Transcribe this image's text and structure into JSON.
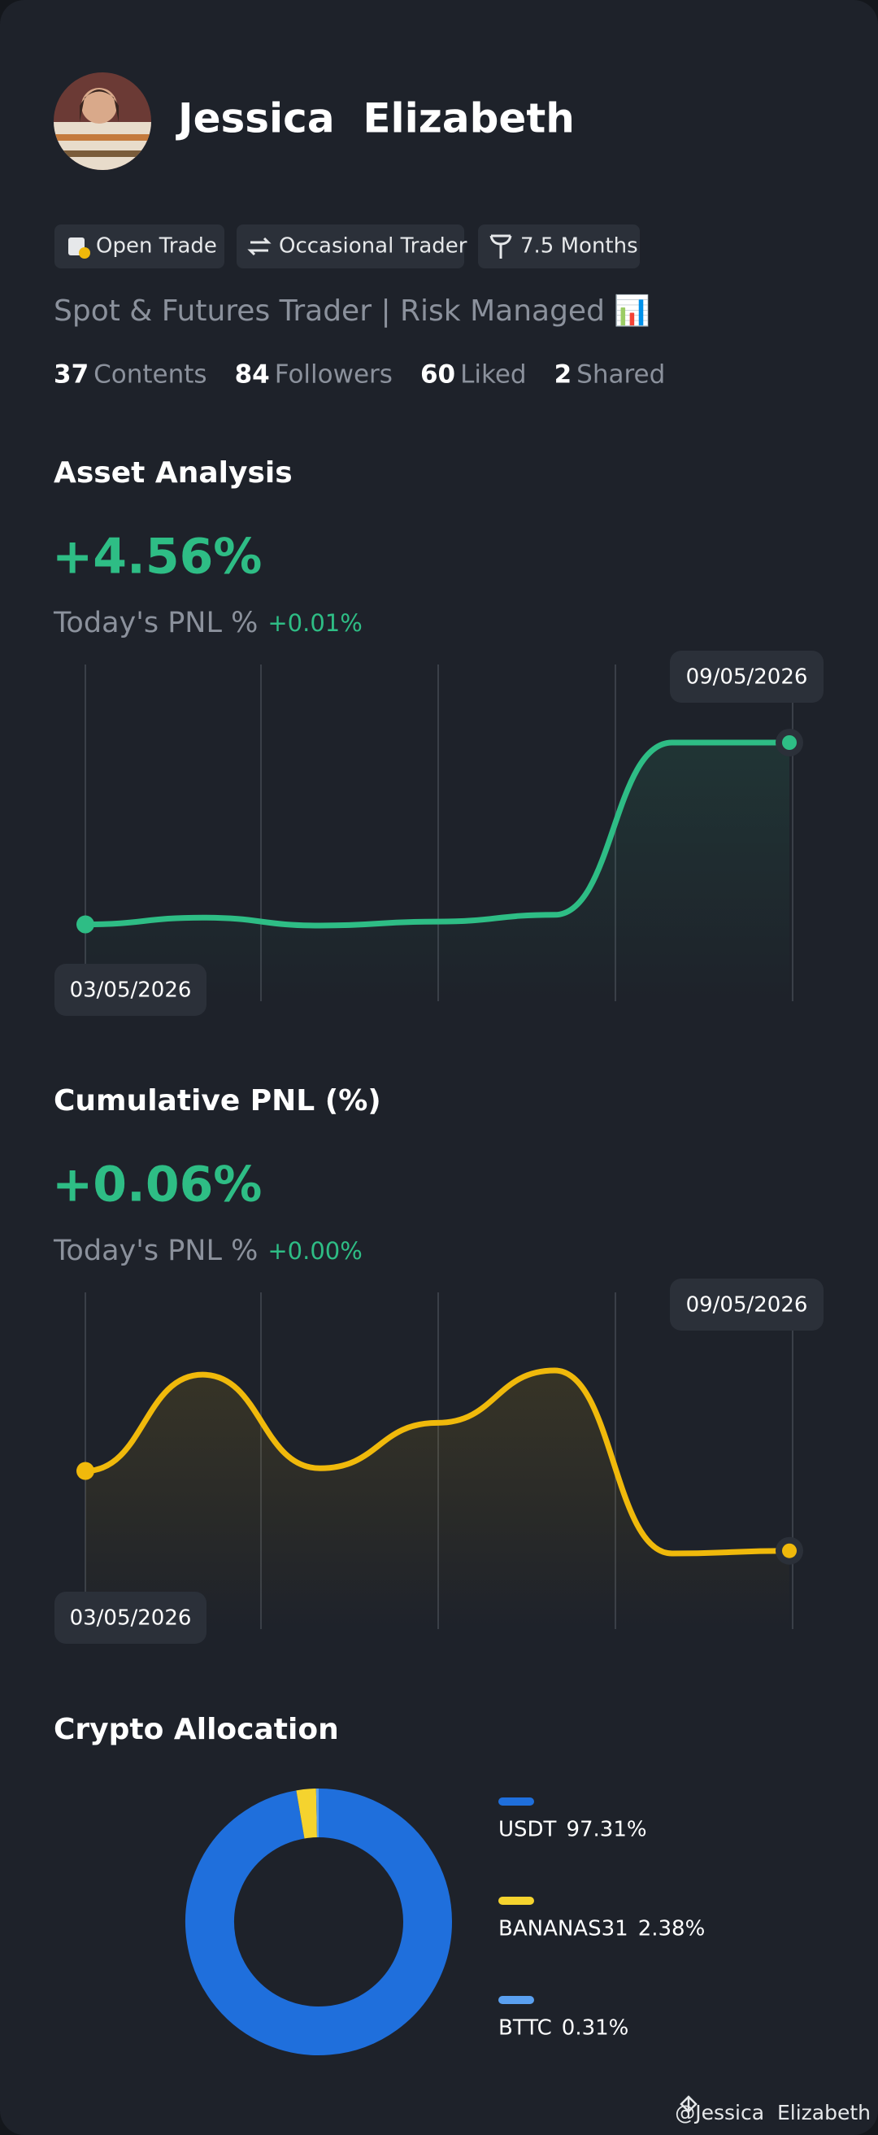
{
  "profile": {
    "name": "Jessica  Elizabeth",
    "badges": [
      "Open Trade",
      "Occasional Trader",
      "7.5 Months"
    ],
    "bio": "Spot & Futures Trader | Risk Managed 📊",
    "stats": [
      {
        "value": 37,
        "label": "Contents"
      },
      {
        "value": 84,
        "label": "Followers"
      },
      {
        "value": 60,
        "label": "Liked"
      },
      {
        "value": 2,
        "label": "Shared"
      }
    ]
  },
  "chart_data": [
    {
      "type": "line",
      "title": "Asset Analysis",
      "headline": "+4.56%",
      "subtitle": "Today's PNL %",
      "change": "+0.01%",
      "categories": [
        "03/05/2026",
        null,
        null,
        null,
        null,
        null,
        "09/05/2026"
      ],
      "values": [
        0,
        0.17,
        -0.03,
        0.07,
        0.24,
        4.56,
        4.56
      ],
      "color": "#2ebd85"
    },
    {
      "type": "line",
      "title": "Cumulative PNL (%)",
      "headline": "+0.06%",
      "subtitle": "Today's PNL %",
      "change": "+0.00%",
      "categories": [
        "03/05/2026",
        null,
        null,
        null,
        null,
        null,
        "09/05/2026"
      ],
      "values": [
        2.15,
        4.67,
        2.22,
        3.41,
        4.78,
        -0.01,
        0.06
      ],
      "color": "#f0b90b"
    },
    {
      "type": "pie",
      "title": "Crypto Allocation",
      "categories": [
        "USDT",
        "BANANAS31",
        "BTTC"
      ],
      "values": [
        97.31,
        2.38,
        0.31
      ],
      "value_labels": [
        "97.31%",
        "2.38%",
        "0.31%"
      ],
      "colors": [
        "#1f6fdc",
        "#f5d32e",
        "#5aa0f0"
      ]
    }
  ],
  "watermark": "@Jessica  Elizabeth"
}
